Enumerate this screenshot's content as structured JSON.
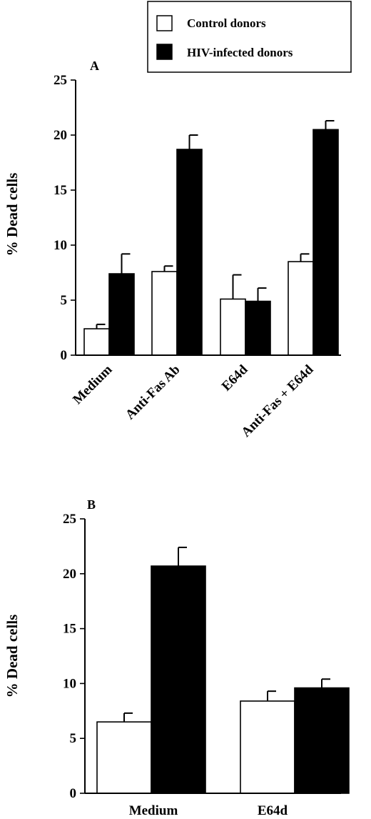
{
  "legend": {
    "items": [
      {
        "label": "Control donors",
        "fill": "#ffffff"
      },
      {
        "label": "HIV-infected donors",
        "fill": "#000000"
      }
    ]
  },
  "colors": {
    "control": "#ffffff",
    "hiv": "#000000",
    "stroke": "#000000"
  },
  "chart_data": [
    {
      "panel": "A",
      "type": "bar",
      "ylabel": "% Dead cells",
      "xlabel": "",
      "ylim": [
        0,
        25
      ],
      "yticks": [
        0,
        5,
        10,
        15,
        20,
        25
      ],
      "categories": [
        "Medium",
        "Anti-Fas Ab",
        "E64d",
        "Anti-Fas + E64d"
      ],
      "series": [
        {
          "name": "Control donors",
          "values": [
            2.4,
            7.6,
            5.1,
            8.5
          ],
          "errors": [
            0.4,
            0.5,
            2.2,
            0.7
          ]
        },
        {
          "name": "HIV-infected donors",
          "values": [
            7.4,
            18.7,
            4.9,
            20.5
          ],
          "errors": [
            1.8,
            1.3,
            1.2,
            0.8
          ]
        }
      ]
    },
    {
      "panel": "B",
      "type": "bar",
      "ylabel": "% Dead cells",
      "xlabel": "",
      "ylim": [
        0,
        25
      ],
      "yticks": [
        0,
        5,
        10,
        15,
        20,
        25
      ],
      "categories": [
        "Medium",
        "E64d"
      ],
      "series": [
        {
          "name": "Control donors",
          "values": [
            6.5,
            8.4
          ],
          "errors": [
            0.8,
            0.9
          ]
        },
        {
          "name": "HIV-infected donors",
          "values": [
            20.7,
            9.6
          ],
          "errors": [
            1.7,
            0.8
          ]
        }
      ]
    }
  ]
}
